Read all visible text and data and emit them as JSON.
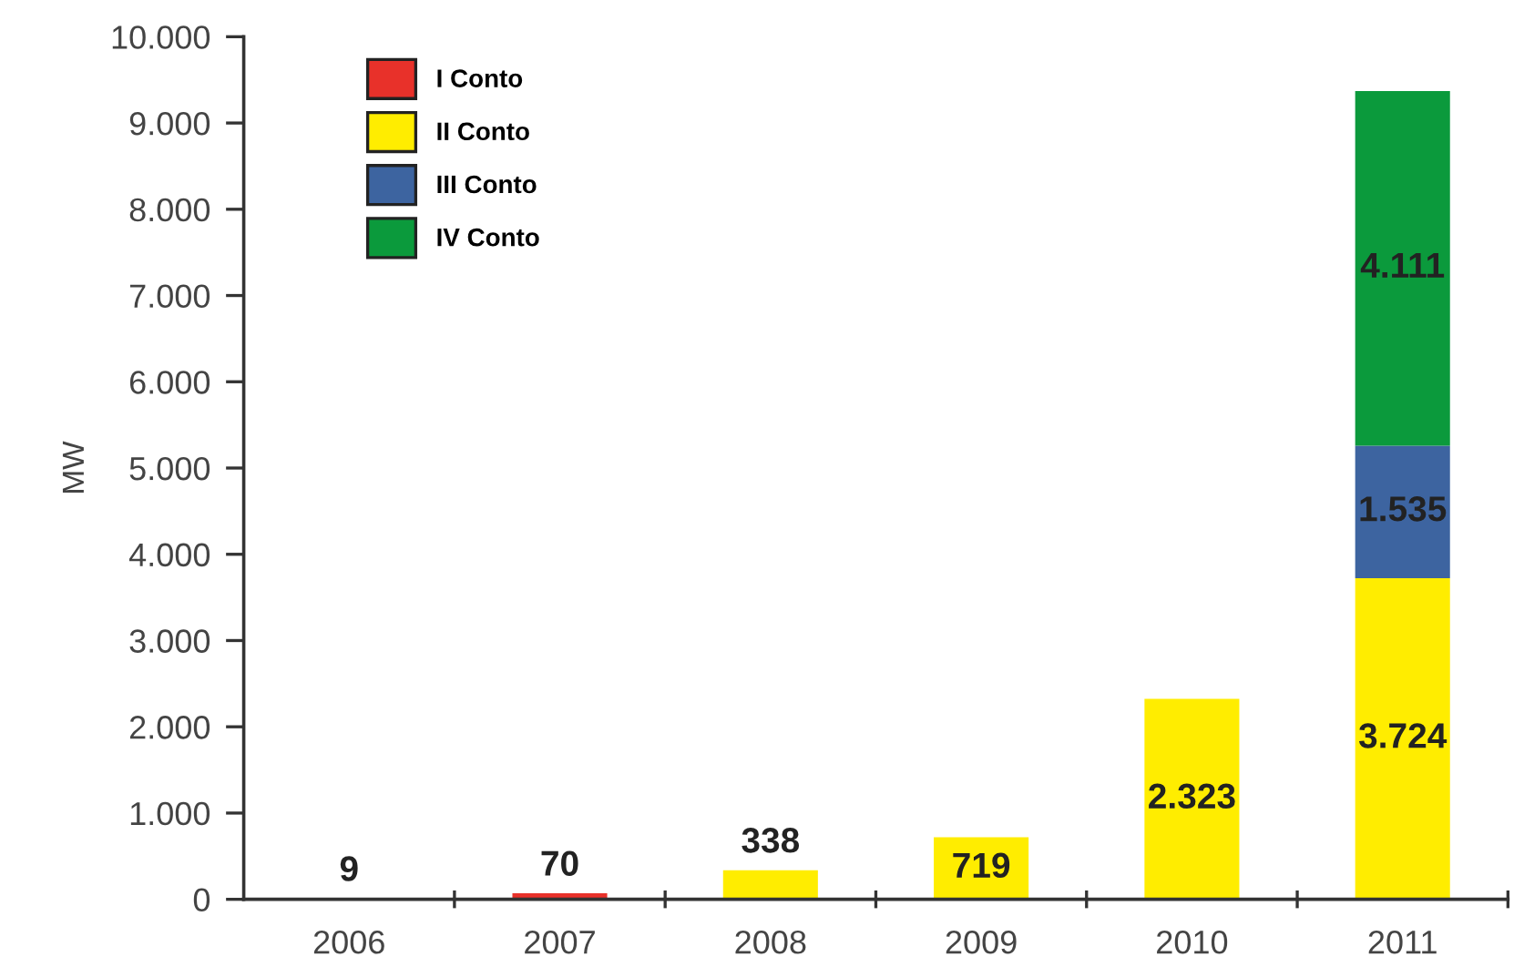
{
  "chart_data": {
    "type": "bar",
    "stacked": true,
    "ylabel": "MW",
    "categories": [
      "2006",
      "2007",
      "2008",
      "2009",
      "2010",
      "2011"
    ],
    "series": [
      {
        "name": "I Conto",
        "color": "#e8312a",
        "values": [
          9,
          70,
          0,
          0,
          0,
          0
        ],
        "value_labels": [
          "9",
          "70",
          null,
          null,
          null,
          null
        ]
      },
      {
        "name": "II Conto",
        "color": "#ffed00",
        "values": [
          0,
          0,
          338,
          719,
          2323,
          3724
        ],
        "value_labels": [
          null,
          null,
          "338",
          "719",
          "2.323",
          "3.724"
        ]
      },
      {
        "name": "III Conto",
        "color": "#3d64a0",
        "values": [
          0,
          0,
          0,
          0,
          0,
          1535
        ],
        "value_labels": [
          null,
          null,
          null,
          null,
          null,
          "1.535"
        ]
      },
      {
        "name": "IV Conto",
        "color": "#0b9a3c",
        "values": [
          0,
          0,
          0,
          0,
          0,
          4111
        ],
        "value_labels": [
          null,
          null,
          null,
          null,
          null,
          "4.111"
        ]
      }
    ],
    "ylim": [
      0,
      10000
    ],
    "yticks": [
      {
        "value": 0,
        "label": "0"
      },
      {
        "value": 1000,
        "label": "1.000"
      },
      {
        "value": 2000,
        "label": "2.000"
      },
      {
        "value": 3000,
        "label": "3.000"
      },
      {
        "value": 4000,
        "label": "4.000"
      },
      {
        "value": 5000,
        "label": "5.000"
      },
      {
        "value": 6000,
        "label": "6.000"
      },
      {
        "value": 7000,
        "label": "7.000"
      },
      {
        "value": 8000,
        "label": "8.000"
      },
      {
        "value": 9000,
        "label": "9.000"
      },
      {
        "value": 10000,
        "label": "10.000"
      }
    ],
    "legend": "top left",
    "grid": false
  }
}
